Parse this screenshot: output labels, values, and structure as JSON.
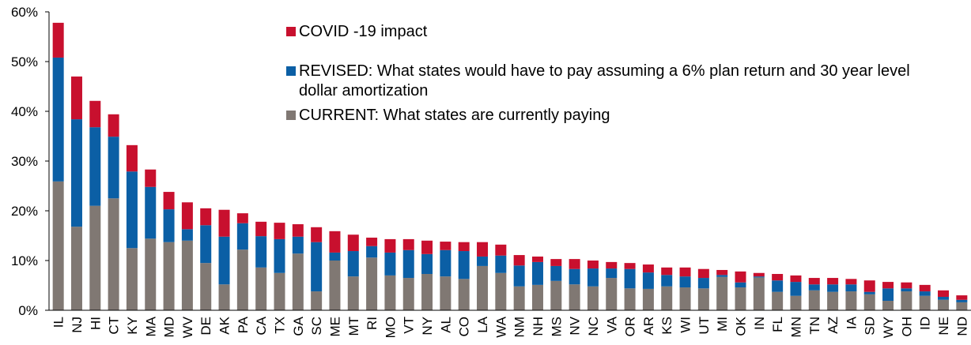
{
  "chart_data": {
    "type": "stacked_bar",
    "categories": [
      "IL",
      "NJ",
      "HI",
      "CT",
      "KY",
      "MA",
      "MD",
      "WV",
      "DE",
      "AK",
      "PA",
      "CA",
      "TX",
      "GA",
      "SC",
      "ME",
      "MT",
      "RI",
      "MO",
      "VT",
      "NY",
      "AL",
      "CO",
      "LA",
      "WA",
      "NM",
      "NH",
      "MS",
      "NV",
      "NC",
      "VA",
      "OR",
      "AR",
      "KS",
      "WI",
      "UT",
      "MI",
      "OK",
      "IN",
      "FL",
      "MN",
      "TN",
      "AZ",
      "IA",
      "SD",
      "WY",
      "OH",
      "ID",
      "NE",
      "ND"
    ],
    "series": [
      {
        "name": "CURRENT: What states are currently paying",
        "color": "#807873",
        "values": [
          25.9,
          16.8,
          21.0,
          22.5,
          12.5,
          14.4,
          13.7,
          14.0,
          9.5,
          5.2,
          12.2,
          8.6,
          7.5,
          11.4,
          3.8,
          10.0,
          6.8,
          10.6,
          7.0,
          6.5,
          7.3,
          6.8,
          6.3,
          8.9,
          7.5,
          4.8,
          5.1,
          5.9,
          5.2,
          4.8,
          6.5,
          4.4,
          4.3,
          4.8,
          4.6,
          4.4,
          6.7,
          4.6,
          6.6,
          3.7,
          2.9,
          4.0,
          3.7,
          3.8,
          3.2,
          1.9,
          3.8,
          2.9,
          2.1,
          1.6
        ]
      },
      {
        "name": "REVISED: What states would have to pay assuming a 6% plan return and 30 year level dollar amortization",
        "color": "#0b5fa5",
        "values": [
          24.9,
          21.6,
          15.8,
          12.4,
          15.4,
          10.4,
          6.6,
          2.3,
          7.6,
          9.6,
          5.3,
          6.3,
          6.8,
          3.4,
          9.9,
          1.6,
          5.1,
          2.3,
          4.6,
          5.6,
          4.0,
          5.3,
          5.6,
          1.9,
          3.5,
          4.2,
          4.6,
          3.0,
          3.1,
          3.6,
          1.9,
          3.9,
          3.3,
          2.3,
          2.2,
          2.1,
          0.4,
          1.0,
          0.2,
          2.3,
          2.8,
          1.2,
          1.5,
          1.4,
          0.5,
          2.5,
          0.6,
          0.9,
          0.6,
          0.5
        ]
      },
      {
        "name": "COVID -19 impact",
        "color": "#c8102e",
        "values": [
          7.0,
          8.6,
          5.3,
          4.5,
          5.3,
          3.5,
          3.5,
          5.4,
          3.4,
          5.4,
          2.0,
          2.9,
          3.3,
          2.5,
          3.0,
          4.3,
          3.3,
          1.7,
          2.7,
          2.2,
          2.7,
          1.7,
          1.8,
          2.9,
          2.2,
          2.1,
          1.1,
          1.4,
          2.0,
          1.6,
          1.3,
          1.2,
          1.6,
          1.5,
          1.8,
          1.8,
          1.0,
          2.2,
          0.7,
          1.3,
          1.3,
          1.3,
          1.3,
          1.1,
          2.3,
          1.3,
          1.2,
          1.3,
          1.3,
          0.9
        ]
      }
    ],
    "ylim": [
      0,
      60
    ],
    "yticks": [
      {
        "value": 0,
        "label": "0%"
      },
      {
        "value": 10,
        "label": "10%"
      },
      {
        "value": 20,
        "label": "20%"
      },
      {
        "value": 30,
        "label": "30%"
      },
      {
        "value": 40,
        "label": "40%"
      },
      {
        "value": 50,
        "label": "50%"
      },
      {
        "value": 60,
        "label": "60%"
      }
    ],
    "grid": false
  }
}
